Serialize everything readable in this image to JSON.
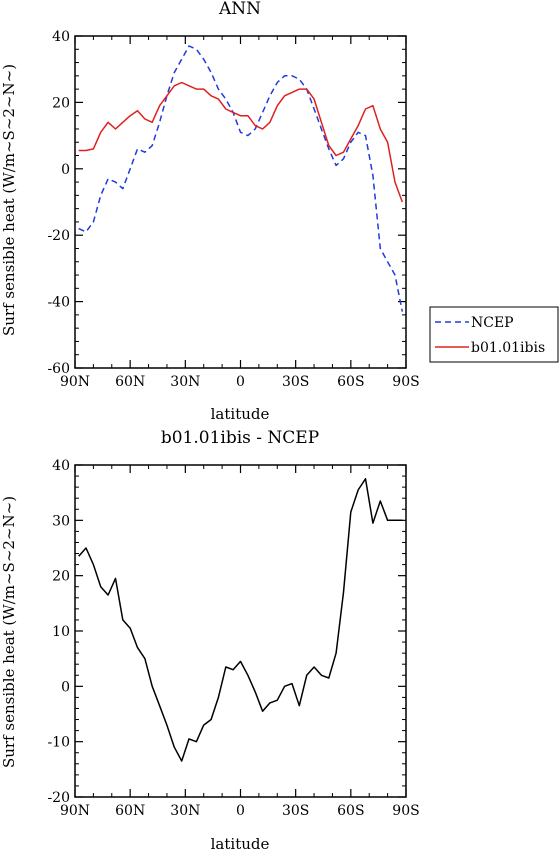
{
  "chart_data": [
    {
      "type": "line",
      "title": "ANN",
      "xlabel": "latitude",
      "ylabel": "Surf sensible heat (W/m~S~2~N~)",
      "x_tick_labels": [
        "90N",
        "60N",
        "30N",
        "0",
        "30S",
        "60S",
        "90S"
      ],
      "x_tick_values": [
        90,
        60,
        30,
        0,
        -30,
        -60,
        -90
      ],
      "xlim": [
        90,
        -90
      ],
      "ylim": [
        -60,
        40
      ],
      "y_tick_values": [
        -60,
        -40,
        -20,
        0,
        20,
        40
      ],
      "y_tick_labels": [
        "-60",
        "-40",
        "-20",
        "0",
        "20",
        "40"
      ],
      "grid": false,
      "legend_position": "right",
      "series": [
        {
          "name": "NCEP",
          "color": "#1f3ae0",
          "style": "dashed",
          "x": [
            88,
            84,
            80,
            76,
            72,
            68,
            64,
            60,
            56,
            52,
            48,
            44,
            40,
            36,
            32,
            28,
            24,
            20,
            16,
            12,
            8,
            4,
            0,
            -4,
            -8,
            -12,
            -16,
            -20,
            -24,
            -28,
            -32,
            -36,
            -40,
            -44,
            -48,
            -52,
            -56,
            -60,
            -64,
            -68,
            -72,
            -76,
            -80,
            -84,
            -88
          ],
          "y": [
            -18,
            -19,
            -16,
            -8,
            -3,
            -4,
            -6,
            0,
            6,
            5,
            7,
            14,
            22,
            29,
            33,
            37,
            36,
            33,
            29,
            24,
            21,
            17,
            11,
            10,
            12,
            17,
            22,
            26,
            28,
            28,
            27,
            24,
            18,
            12,
            6,
            1,
            3,
            8,
            11,
            10,
            -2,
            -24,
            -28,
            -32,
            -43
          ]
        },
        {
          "name": "b01.01ibis",
          "color": "#e0201c",
          "style": "solid",
          "x": [
            88,
            84,
            80,
            76,
            72,
            68,
            64,
            60,
            56,
            52,
            48,
            44,
            40,
            36,
            32,
            28,
            24,
            20,
            16,
            12,
            8,
            4,
            0,
            -4,
            -8,
            -12,
            -16,
            -20,
            -24,
            -28,
            -32,
            -36,
            -40,
            -44,
            -48,
            -52,
            -56,
            -60,
            -64,
            -68,
            -72,
            -76,
            -80,
            -84,
            -88
          ],
          "y": [
            5.5,
            5.5,
            6,
            11,
            14,
            12,
            14,
            16,
            17.5,
            15,
            14,
            19,
            22,
            25,
            26,
            25,
            24,
            24,
            22,
            21,
            18,
            17,
            16,
            16,
            13,
            12,
            14,
            19,
            22,
            23,
            24,
            24,
            21,
            14,
            7,
            4,
            5,
            9,
            13,
            18,
            19,
            12,
            8,
            -4,
            -10
          ]
        }
      ]
    },
    {
      "type": "line",
      "title": "b01.01ibis - NCEP",
      "xlabel": "latitude",
      "ylabel": "Surf sensible heat (W/m~S~2~N~)",
      "x_tick_labels": [
        "90N",
        "60N",
        "30N",
        "0",
        "30S",
        "60S",
        "90S"
      ],
      "x_tick_values": [
        90,
        60,
        30,
        0,
        -30,
        -60,
        -90
      ],
      "xlim": [
        90,
        -90
      ],
      "ylim": [
        -20,
        40
      ],
      "y_tick_values": [
        -20,
        -10,
        0,
        10,
        20,
        30,
        40
      ],
      "y_tick_labels": [
        "-20",
        "-10",
        "0",
        "10",
        "20",
        "30",
        "40"
      ],
      "grid": false,
      "series": [
        {
          "color": "#000000",
          "style": "solid",
          "x": [
            88,
            84,
            80,
            76,
            72,
            68,
            64,
            60,
            56,
            52,
            48,
            44,
            40,
            36,
            32,
            28,
            24,
            20,
            16,
            12,
            8,
            4,
            0,
            -4,
            -8,
            -12,
            -16,
            -20,
            -24,
            -28,
            -32,
            -36,
            -40,
            -44,
            -48,
            -52,
            -56,
            -60,
            -64,
            -68,
            -72,
            -76,
            -80,
            -84,
            -88
          ],
          "y": [
            23.5,
            25,
            22,
            18,
            16.5,
            19.5,
            12,
            10.5,
            7,
            5,
            0,
            -3.5,
            -7,
            -11,
            -13.5,
            -9.5,
            -10,
            -7,
            -6,
            -2,
            3.5,
            3,
            4.5,
            2,
            -1,
            -4.5,
            -3,
            -2.5,
            0,
            0.5,
            -3.5,
            2,
            3.5,
            2,
            1.5,
            6,
            17,
            31.5,
            35.5,
            37.5,
            29.5,
            33.5,
            30,
            30,
            30
          ]
        }
      ]
    }
  ]
}
